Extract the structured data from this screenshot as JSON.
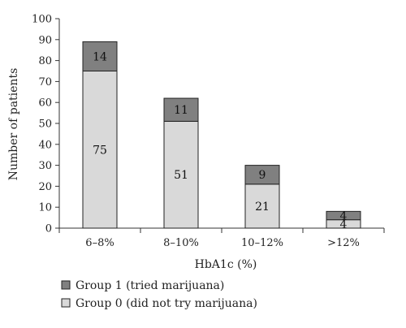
{
  "chart_data": {
    "type": "bar",
    "stacked": true,
    "categories": [
      "6–8%",
      "8–10%",
      "10–12%",
      ">12%"
    ],
    "series": [
      {
        "name": "Group 0 (did not try marijuana)",
        "values": [
          75,
          51,
          21,
          4
        ],
        "color": "#d9d9d9"
      },
      {
        "name": "Group 1 (tried marijuana)",
        "values": [
          14,
          11,
          9,
          4
        ],
        "color": "#808080"
      }
    ],
    "xlabel": "HbA1c (%)",
    "ylabel": "Number of patients",
    "ylim": [
      0,
      100
    ],
    "yticks": [
      0,
      10,
      20,
      30,
      40,
      50,
      60,
      70,
      80,
      90,
      100
    ],
    "grid": false,
    "legend_position": "bottom-left",
    "legend_order": [
      1,
      0
    ]
  }
}
